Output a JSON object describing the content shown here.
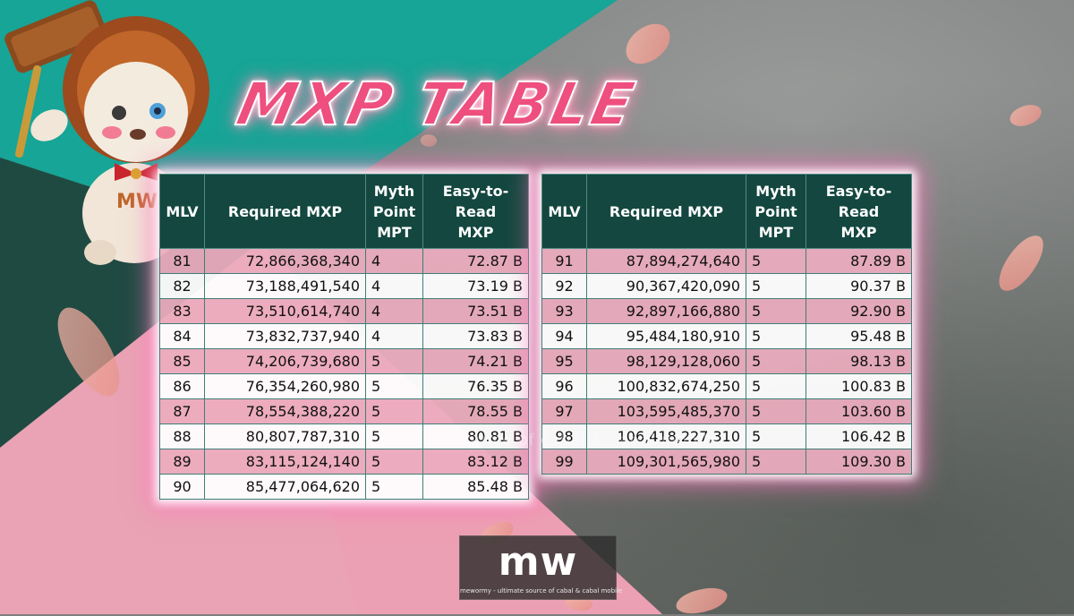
{
  "title": "MXP TABLE",
  "headers": {
    "mlv": "MLV",
    "required": "Required MXP",
    "myth": [
      "Myth",
      "Point",
      "MPT"
    ],
    "easy": [
      "Easy-to-Read",
      "MXP"
    ]
  },
  "left_rows": [
    {
      "mlv": "81",
      "required": "72,866,368,340",
      "mpt": "4",
      "easy": "72.87 B"
    },
    {
      "mlv": "82",
      "required": "73,188,491,540",
      "mpt": "4",
      "easy": "73.19 B"
    },
    {
      "mlv": "83",
      "required": "73,510,614,740",
      "mpt": "4",
      "easy": "73.51 B"
    },
    {
      "mlv": "84",
      "required": "73,832,737,940",
      "mpt": "4",
      "easy": "73.83 B"
    },
    {
      "mlv": "85",
      "required": "74,206,739,680",
      "mpt": "5",
      "easy": "74.21 B"
    },
    {
      "mlv": "86",
      "required": "76,354,260,980",
      "mpt": "5",
      "easy": "76.35 B"
    },
    {
      "mlv": "87",
      "required": "78,554,388,220",
      "mpt": "5",
      "easy": "78.55 B"
    },
    {
      "mlv": "88",
      "required": "80,807,787,310",
      "mpt": "5",
      "easy": "80.81 B"
    },
    {
      "mlv": "89",
      "required": "83,115,124,140",
      "mpt": "5",
      "easy": "83.12 B"
    },
    {
      "mlv": "90",
      "required": "85,477,064,620",
      "mpt": "5",
      "easy": "85.48 B"
    }
  ],
  "right_rows": [
    {
      "mlv": "91",
      "required": "87,894,274,640",
      "mpt": "5",
      "easy": "87.89 B"
    },
    {
      "mlv": "92",
      "required": "90,367,420,090",
      "mpt": "5",
      "easy": "90.37 B"
    },
    {
      "mlv": "93",
      "required": "92,897,166,880",
      "mpt": "5",
      "easy": "92.90 B"
    },
    {
      "mlv": "94",
      "required": "95,484,180,910",
      "mpt": "5",
      "easy": "95.48 B"
    },
    {
      "mlv": "95",
      "required": "98,129,128,060",
      "mpt": "5",
      "easy": "98.13 B"
    },
    {
      "mlv": "96",
      "required": "100,832,674,250",
      "mpt": "5",
      "easy": "100.83 B"
    },
    {
      "mlv": "97",
      "required": "103,595,485,370",
      "mpt": "5",
      "easy": "103.60 B"
    },
    {
      "mlv": "98",
      "required": "106,418,227,310",
      "mpt": "5",
      "easy": "106.42 B"
    },
    {
      "mlv": "99",
      "required": "109,301,565,980",
      "mpt": "5",
      "easy": "109.30 B"
    }
  ],
  "watermark": "ultimate source of cabal & cabal mobile",
  "logo": {
    "mark": "mw",
    "tagline": "mewormy - ultimate source of cabal & cabal mobile"
  },
  "colors": {
    "header_bg": "#13473f",
    "row_pink": "#ecacbe",
    "row_white": "#ffffff",
    "title_pink": "#ee4f7e",
    "teal": "#16a596",
    "dark_green": "#1f4a42",
    "bg_pink": "#e9a3b4"
  },
  "icons": [
    "mascot-lion-icon",
    "petal-icon"
  ]
}
